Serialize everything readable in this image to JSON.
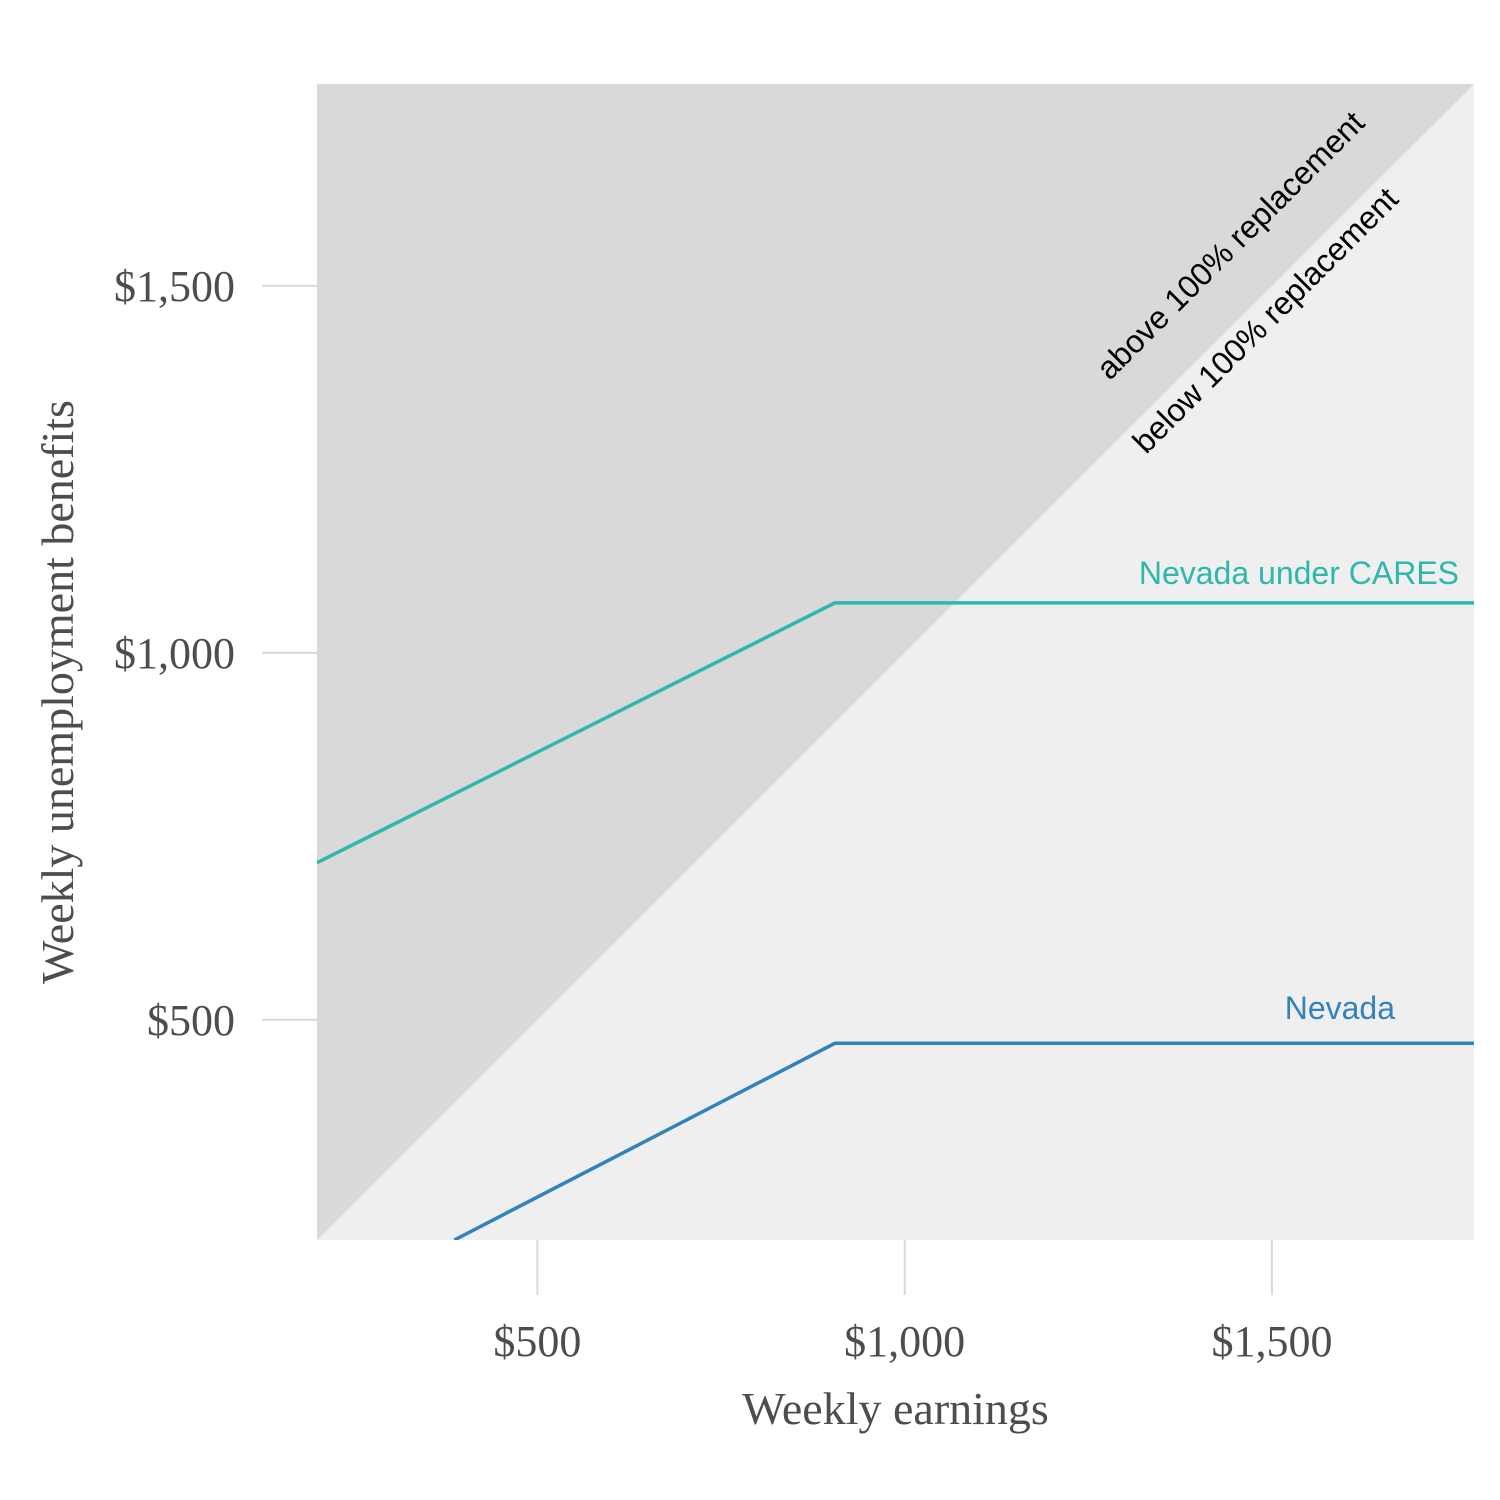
{
  "chart_data": {
    "type": "line",
    "xlabel": "Weekly earnings",
    "ylabel": "Weekly unemployment benefits",
    "xlim": [
      200,
      1775
    ],
    "ylim": [
      200,
      1775
    ],
    "x_ticks": [
      500,
      1000,
      1500
    ],
    "x_tick_labels": [
      "$500",
      "$1,000",
      "$1,500"
    ],
    "y_ticks": [
      500,
      1000,
      1500
    ],
    "y_tick_labels": [
      "$500",
      "$1,000",
      "$1,500"
    ],
    "regions": {
      "above_label": "above 100% replacement",
      "below_label": "below 100% replacement",
      "above_color": "#d9d9d9",
      "below_color": "#efefef"
    },
    "series": [
      {
        "name": "Nevada under CARES",
        "color": "#2eb8ac",
        "x": [
          200,
          905,
          1775
        ],
        "y": [
          714,
          1068,
          1068
        ]
      },
      {
        "name": "Nevada",
        "color": "#3182bd",
        "x": [
          387,
          905,
          1775
        ],
        "y": [
          200,
          468,
          468
        ]
      }
    ]
  }
}
